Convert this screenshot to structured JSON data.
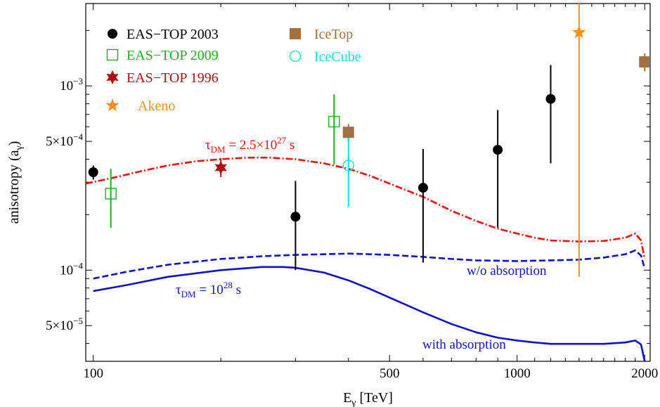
{
  "chart_data": {
    "type": "scatter",
    "xlabel": {
      "base": "E",
      "sub": "γ",
      "rest": " [TeV]"
    },
    "ylabel": {
      "text": "anisotropy (a",
      "sub": "γ",
      "close": ")"
    },
    "xscale": "log",
    "yscale": "log",
    "xlim": [
      96,
      2060
    ],
    "ylim": [
      3.2e-05,
      0.0028
    ],
    "grid": false,
    "legend_position": "top-left",
    "x_ticks": [
      {
        "value": 100,
        "label": "100"
      },
      {
        "value": 500,
        "label": "500"
      },
      {
        "value": 1000,
        "label": "1000"
      },
      {
        "value": 2000,
        "label": "2000"
      }
    ],
    "y_ticks": [
      {
        "value": 5e-05,
        "base": "5×10",
        "exp": "−5"
      },
      {
        "value": 0.0001,
        "base": "10",
        "exp": "−4"
      },
      {
        "value": 0.0005,
        "base": "5×10",
        "exp": "−4"
      },
      {
        "value": 0.001,
        "base": "10",
        "exp": "−3"
      }
    ],
    "series": [
      {
        "name": "EAS−TOP 2003",
        "marker": "circle",
        "color": "#000000",
        "points": [
          {
            "x": 100,
            "y": 0.00034,
            "ylo": 0.00031,
            "yhi": 0.00037
          },
          {
            "x": 300,
            "y": 0.000195,
            "ylo": 0.0001,
            "yhi": 0.000305
          },
          {
            "x": 600,
            "y": 0.00028,
            "ylo": 0.00011,
            "yhi": 0.000455
          },
          {
            "x": 900,
            "y": 0.00045,
            "ylo": 0.00017,
            "yhi": 0.00074
          },
          {
            "x": 1200,
            "y": 0.00085,
            "ylo": 0.00038,
            "yhi": 0.0013
          }
        ]
      },
      {
        "name": "EAS−TOP 2009",
        "marker": "open-square",
        "color": "#22aa22",
        "points": [
          {
            "x": 110,
            "y": 0.00026,
            "ylo": 0.00017,
            "yhi": 0.000355
          },
          {
            "x": 370,
            "y": 0.00064,
            "ylo": 0.000375,
            "yhi": 0.0009
          }
        ]
      },
      {
        "name": "EAS−TOP 1996",
        "marker": "star6",
        "color": "#aa1111",
        "points": [
          {
            "x": 200,
            "y": 0.00036,
            "ylo": 0.00032,
            "yhi": 0.000405
          }
        ]
      },
      {
        "name": "Akeno",
        "marker": "star5",
        "color": "#f5921e",
        "points": [
          {
            "x": 1400,
            "y": 0.00195,
            "ylo": 9.2e-05,
            "yhi": 0.0028
          }
        ]
      },
      {
        "name": "IceTop",
        "marker": "square",
        "color": "#a57040",
        "points": [
          {
            "x": 400,
            "y": 0.00056,
            "ylo": 0.0005,
            "yhi": 0.00062
          },
          {
            "x": 2000,
            "y": 0.00135,
            "ylo": 0.0012,
            "yhi": 0.0015
          }
        ]
      },
      {
        "name": "IceCube",
        "marker": "open-circle",
        "color": "#22dddd",
        "points": [
          {
            "x": 400,
            "y": 0.00037,
            "ylo": 0.00022,
            "yhi": 0.00052
          }
        ]
      }
    ],
    "curves": [
      {
        "color": "#ee1111",
        "style": "dashdot",
        "points": [
          [
            96,
            0.000295
          ],
          [
            110,
            0.000315
          ],
          [
            130,
            0.000345
          ],
          [
            150,
            0.00037
          ],
          [
            175,
            0.00039
          ],
          [
            200,
            0.0004
          ],
          [
            230,
            0.000408
          ],
          [
            260,
            0.000408
          ],
          [
            300,
            0.0004
          ],
          [
            350,
            0.00038
          ],
          [
            400,
            0.000355
          ],
          [
            450,
            0.000325
          ],
          [
            500,
            0.000295
          ],
          [
            600,
            0.00025
          ],
          [
            700,
            0.00021
          ],
          [
            800,
            0.000185
          ],
          [
            900,
            0.000168
          ],
          [
            1000,
            0.000158
          ],
          [
            1100,
            0.00015
          ],
          [
            1200,
            0.000145
          ],
          [
            1400,
            0.000143
          ],
          [
            1600,
            0.000144
          ],
          [
            1800,
            0.00015
          ],
          [
            1900,
            0.000158
          ],
          [
            1960,
            0.000145
          ],
          [
            2000,
            0.000115
          ]
        ]
      },
      {
        "color": "#1111cc",
        "style": "dashed",
        "points": [
          [
            100,
            9e-05
          ],
          [
            120,
            9.8e-05
          ],
          [
            150,
            0.000107
          ],
          [
            200,
            0.000115
          ],
          [
            250,
            0.000119
          ],
          [
            300,
            0.000121
          ],
          [
            350,
            0.000122
          ],
          [
            400,
            0.000123
          ],
          [
            450,
            0.000122
          ],
          [
            500,
            0.000121
          ],
          [
            600,
            0.000118
          ],
          [
            700,
            0.000115
          ],
          [
            800,
            0.000113
          ],
          [
            1000,
            0.000112
          ],
          [
            1200,
            0.000113
          ],
          [
            1400,
            0.000114
          ],
          [
            1600,
            0.000117
          ],
          [
            1800,
            0.000122
          ],
          [
            1900,
            0.000128
          ],
          [
            1960,
            0.00012
          ],
          [
            2000,
            0.000102
          ]
        ]
      },
      {
        "color": "#1111cc",
        "style": "solid",
        "points": [
          [
            100,
            7.7e-05
          ],
          [
            120,
            8.3e-05
          ],
          [
            150,
            9.2e-05
          ],
          [
            200,
            0.0001
          ],
          [
            250,
            0.000104
          ],
          [
            280,
            0.000104
          ],
          [
            300,
            0.000103
          ],
          [
            350,
            9.7e-05
          ],
          [
            400,
            8.8e-05
          ],
          [
            450,
            7.9e-05
          ],
          [
            500,
            7.1e-05
          ],
          [
            600,
            5.9e-05
          ],
          [
            700,
            5.1e-05
          ],
          [
            800,
            4.6e-05
          ],
          [
            900,
            4.3e-05
          ],
          [
            1000,
            4.15e-05
          ],
          [
            1100,
            4.05e-05
          ],
          [
            1200,
            3.98e-05
          ],
          [
            1400,
            3.98e-05
          ],
          [
            1600,
            3.98e-05
          ],
          [
            1800,
            4.05e-05
          ],
          [
            1900,
            4.15e-05
          ],
          [
            1960,
            3.95e-05
          ],
          [
            2000,
            3.2e-05
          ]
        ]
      }
    ],
    "annotations": [
      {
        "id": "tau-red",
        "color": "#ee1111",
        "parts": [
          {
            "t": "τ"
          },
          {
            "t": "DM",
            "sub": true
          },
          {
            "t": " = 2.5×10"
          },
          {
            "t": "27",
            "sup": true
          },
          {
            "t": " s"
          }
        ]
      },
      {
        "id": "tau-blue",
        "color": "#1111cc",
        "parts": [
          {
            "t": "τ"
          },
          {
            "t": "DM",
            "sub": true
          },
          {
            "t": " = 10"
          },
          {
            "t": "28",
            "sup": true
          },
          {
            "t": " s"
          }
        ]
      },
      {
        "id": "wo-absorption",
        "color": "#1111cc",
        "parts": [
          {
            "t": "w/o absorption"
          }
        ]
      },
      {
        "id": "with-absorption",
        "color": "#1111cc",
        "parts": [
          {
            "t": "with absorption"
          }
        ]
      }
    ]
  }
}
